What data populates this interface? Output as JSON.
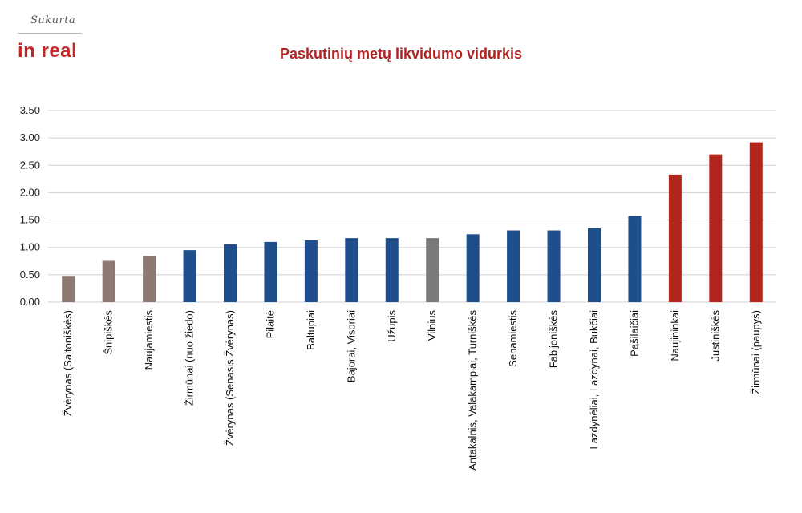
{
  "logo": {
    "tagline": "Sukurta",
    "brand": "in real"
  },
  "colors": {
    "gray_brown": "#8d7b73",
    "blue": "#1f4e8c",
    "gray": "#7a7a7a",
    "red": "#b3261e",
    "grid": "#cfcfcf"
  },
  "chart_data": {
    "type": "bar",
    "title": "Paskutinių metų likvidumo vidurkis",
    "xlabel": "",
    "ylabel": "",
    "ylim": [
      0,
      3.5
    ],
    "yticks": [
      "0.00",
      "0.50",
      "1.00",
      "1.50",
      "2.00",
      "2.50",
      "3.00",
      "3.50"
    ],
    "grid": true,
    "categories": [
      "Žvėrynas (Saltoniškės)",
      "Šnipiškės",
      "Naujamiestis",
      "Žirmūnai (nuo žiedo)",
      "Žvėrynas (Senasis Žvėrynas)",
      "Pilaitė",
      "Baltupiai",
      "Bajorai, Visoriai",
      "Užupis",
      "Vilnius",
      "Antakalnis, Valakampiai, Turniškės",
      "Senamiestis",
      "Fabijoniškės",
      "Lazdynėliai, Lazdynai, Bukčiai",
      "Pašilaičiai",
      "Naujininkai",
      "Justiniškės",
      "Žirmūnai (paupys)"
    ],
    "values": [
      0.48,
      0.77,
      0.84,
      0.95,
      1.06,
      1.1,
      1.13,
      1.17,
      1.17,
      1.17,
      1.24,
      1.31,
      1.31,
      1.35,
      1.57,
      2.33,
      2.7,
      2.92
    ],
    "bar_colors": [
      "#8d7b73",
      "#8d7b73",
      "#8d7b73",
      "#1f4e8c",
      "#1f4e8c",
      "#1f4e8c",
      "#1f4e8c",
      "#1f4e8c",
      "#1f4e8c",
      "#7a7a7a",
      "#1f4e8c",
      "#1f4e8c",
      "#1f4e8c",
      "#1f4e8c",
      "#1f4e8c",
      "#b3261e",
      "#b3261e",
      "#b3261e"
    ]
  }
}
